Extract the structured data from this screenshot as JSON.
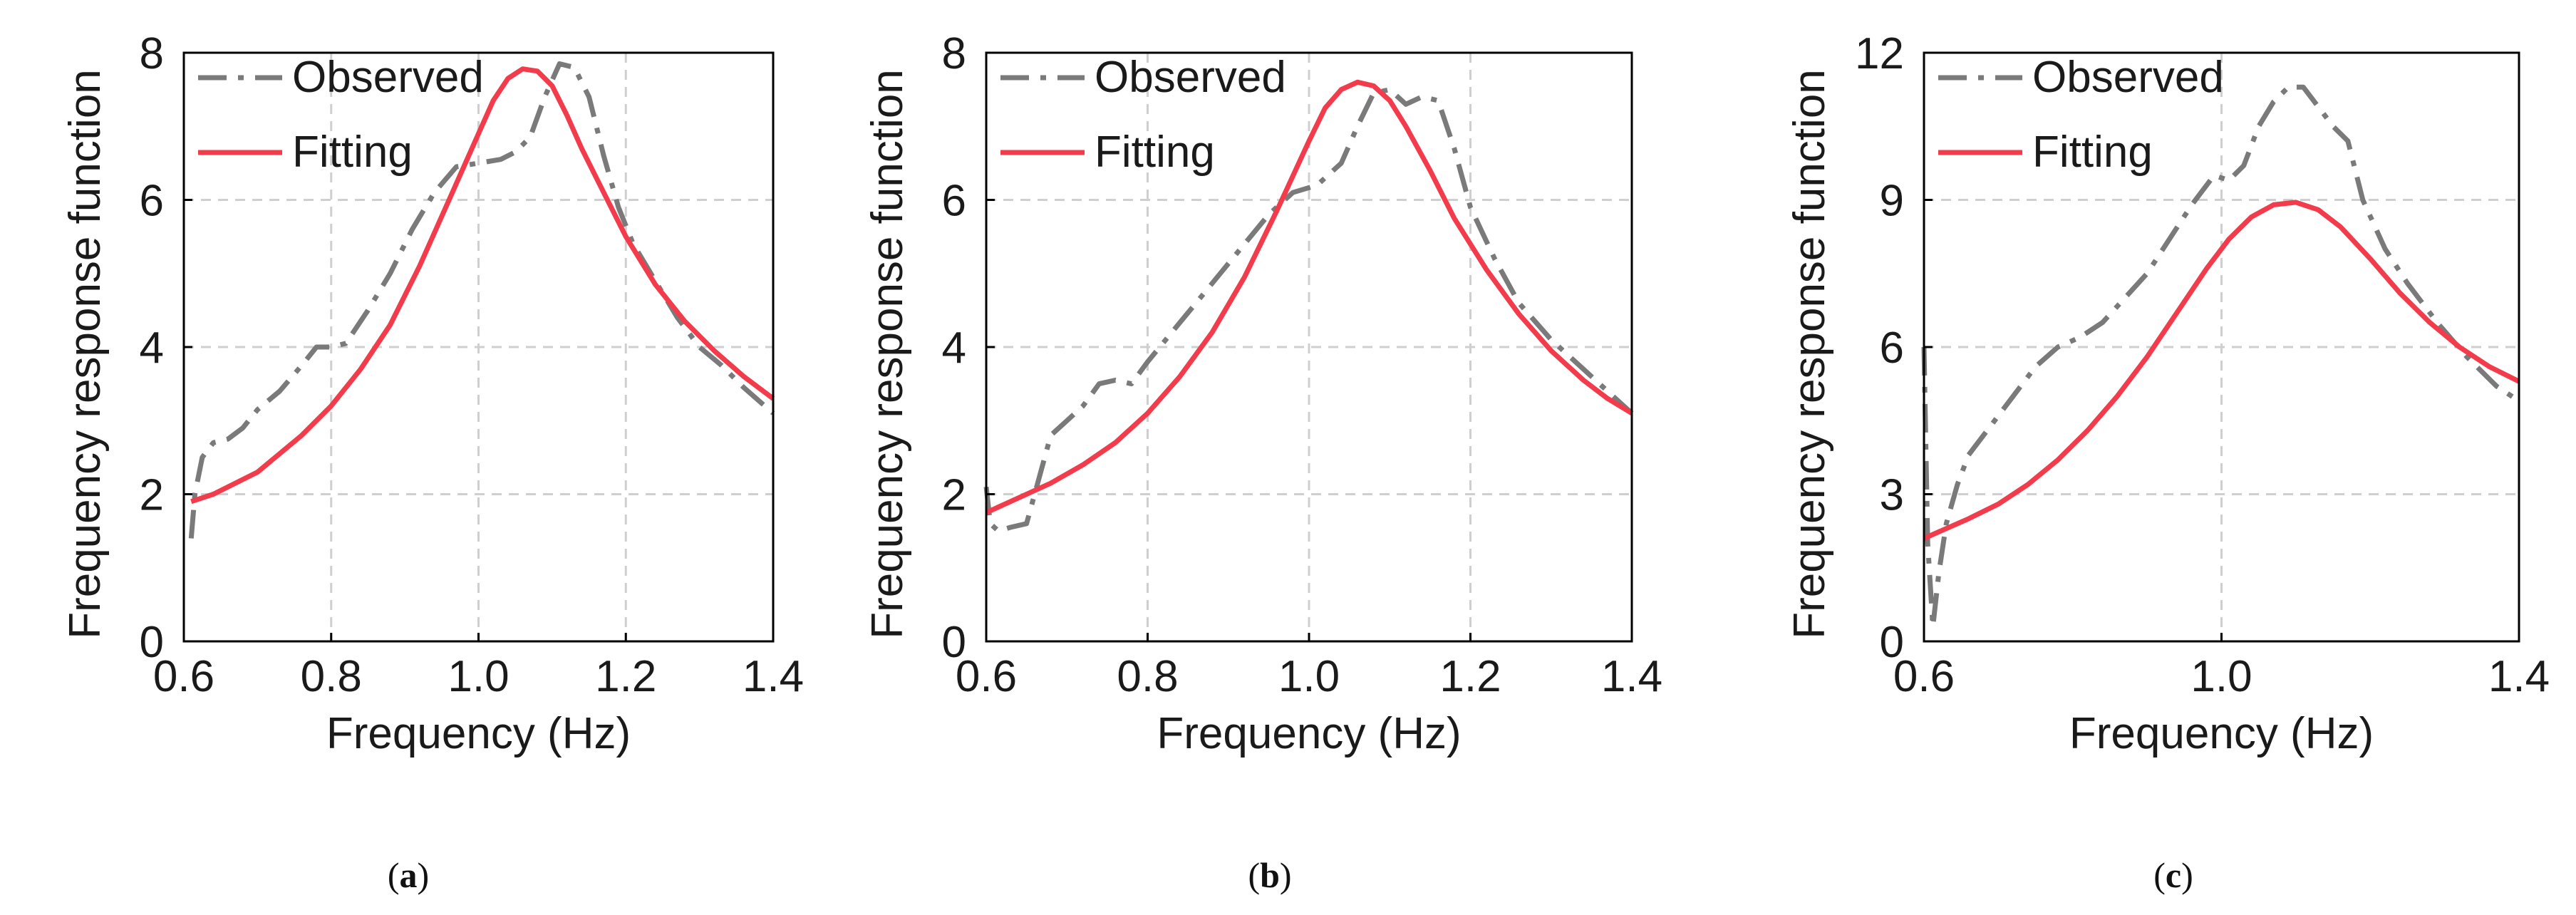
{
  "colors": {
    "observed": "#7a7a7a",
    "fitting": "#f23b4b",
    "grid": "#cfcfcf",
    "frame": "#000000"
  },
  "chart_data": [
    {
      "type": "line",
      "panel_label": "a",
      "xlabel": "Frequency (Hz)",
      "ylabel": "Frequency response function",
      "xlim": [
        0.6,
        1.4
      ],
      "ylim": [
        0,
        8
      ],
      "xticks": [
        0.6,
        0.8,
        1.0,
        1.2,
        1.4
      ],
      "xtick_labels": [
        "0.6",
        "0.8",
        "1.0",
        "1.2",
        "1.4"
      ],
      "yticks": [
        0,
        2,
        4,
        6,
        8
      ],
      "ytick_labels": [
        "0",
        "2",
        "4",
        "6",
        "8"
      ],
      "grid": true,
      "legend_position": "top-left",
      "series": [
        {
          "name": "Observed",
          "style": "dash-dot",
          "x": [
            0.61,
            0.615,
            0.625,
            0.64,
            0.66,
            0.68,
            0.7,
            0.73,
            0.76,
            0.78,
            0.8,
            0.82,
            0.85,
            0.88,
            0.91,
            0.94,
            0.97,
            1.0,
            1.03,
            1.05,
            1.07,
            1.09,
            1.11,
            1.13,
            1.15,
            1.17,
            1.19,
            1.21,
            1.24,
            1.27,
            1.3,
            1.33,
            1.36,
            1.4
          ],
          "y": [
            1.4,
            2.0,
            2.5,
            2.7,
            2.75,
            2.9,
            3.15,
            3.4,
            3.75,
            4.0,
            4.0,
            4.05,
            4.5,
            5.0,
            5.6,
            6.1,
            6.45,
            6.5,
            6.55,
            6.65,
            6.85,
            7.4,
            7.85,
            7.8,
            7.4,
            6.6,
            5.9,
            5.4,
            4.9,
            4.4,
            4.0,
            3.75,
            3.45,
            3.1
          ]
        },
        {
          "name": "Fitting",
          "style": "solid",
          "x": [
            0.61,
            0.64,
            0.67,
            0.7,
            0.73,
            0.76,
            0.8,
            0.84,
            0.88,
            0.92,
            0.96,
            1.0,
            1.02,
            1.04,
            1.06,
            1.08,
            1.1,
            1.12,
            1.14,
            1.17,
            1.2,
            1.24,
            1.28,
            1.32,
            1.36,
            1.4
          ],
          "y": [
            1.9,
            2.0,
            2.15,
            2.3,
            2.55,
            2.8,
            3.2,
            3.7,
            4.3,
            5.1,
            6.0,
            6.9,
            7.35,
            7.65,
            7.78,
            7.75,
            7.55,
            7.15,
            6.7,
            6.1,
            5.5,
            4.85,
            4.35,
            3.95,
            3.6,
            3.3
          ]
        }
      ]
    },
    {
      "type": "line",
      "panel_label": "b",
      "xlabel": "Frequency (Hz)",
      "ylabel": "Frequency response function",
      "xlim": [
        0.6,
        1.4
      ],
      "ylim": [
        0,
        8
      ],
      "xticks": [
        0.6,
        0.8,
        1.0,
        1.2,
        1.4
      ],
      "xtick_labels": [
        "0.6",
        "0.8",
        "1.0",
        "1.2",
        "1.4"
      ],
      "yticks": [
        0,
        2,
        4,
        6,
        8
      ],
      "ytick_labels": [
        "0",
        "2",
        "4",
        "6",
        "8"
      ],
      "grid": true,
      "legend_position": "top-left",
      "series": [
        {
          "name": "Observed",
          "style": "dash-dot",
          "x": [
            0.6,
            0.605,
            0.615,
            0.63,
            0.65,
            0.665,
            0.68,
            0.7,
            0.72,
            0.74,
            0.76,
            0.78,
            0.8,
            0.83,
            0.86,
            0.89,
            0.92,
            0.95,
            0.98,
            1.01,
            1.04,
            1.06,
            1.08,
            1.1,
            1.12,
            1.14,
            1.16,
            1.18,
            1.2,
            1.23,
            1.26,
            1.3,
            1.34,
            1.37,
            1.4
          ],
          "y": [
            2.1,
            1.6,
            1.5,
            1.55,
            1.6,
            2.2,
            2.8,
            3.0,
            3.2,
            3.5,
            3.55,
            3.5,
            3.8,
            4.2,
            4.6,
            5.0,
            5.4,
            5.8,
            6.1,
            6.2,
            6.5,
            7.0,
            7.45,
            7.5,
            7.3,
            7.4,
            7.35,
            6.7,
            5.9,
            5.2,
            4.6,
            4.1,
            3.7,
            3.4,
            3.1
          ]
        },
        {
          "name": "Fitting",
          "style": "solid",
          "x": [
            0.6,
            0.64,
            0.68,
            0.72,
            0.76,
            0.8,
            0.84,
            0.88,
            0.92,
            0.96,
            1.0,
            1.02,
            1.04,
            1.06,
            1.08,
            1.1,
            1.12,
            1.15,
            1.18,
            1.22,
            1.26,
            1.3,
            1.34,
            1.37,
            1.4
          ],
          "y": [
            1.75,
            1.95,
            2.15,
            2.4,
            2.7,
            3.1,
            3.6,
            4.2,
            4.95,
            5.85,
            6.8,
            7.25,
            7.5,
            7.6,
            7.55,
            7.35,
            7.0,
            6.4,
            5.75,
            5.05,
            4.45,
            3.95,
            3.55,
            3.3,
            3.1
          ]
        }
      ]
    },
    {
      "type": "line",
      "panel_label": "c",
      "xlabel": "Frequency (Hz)",
      "ylabel": "Frequency response function",
      "xlim": [
        0.6,
        1.4
      ],
      "ylim": [
        0,
        12
      ],
      "xticks": [
        0.6,
        1.0,
        1.4
      ],
      "xtick_labels": [
        "0.6",
        "1.0",
        "1.4"
      ],
      "yticks": [
        0,
        3,
        6,
        9,
        12
      ],
      "ytick_labels": [
        "0",
        "3",
        "6",
        "9",
        "12"
      ],
      "grid": true,
      "legend_position": "top-left",
      "series": [
        {
          "name": "Observed",
          "style": "dash-dot",
          "x": [
            0.6,
            0.605,
            0.612,
            0.62,
            0.63,
            0.645,
            0.66,
            0.68,
            0.7,
            0.72,
            0.75,
            0.78,
            0.81,
            0.84,
            0.87,
            0.9,
            0.93,
            0.96,
            0.99,
            1.01,
            1.03,
            1.05,
            1.07,
            1.09,
            1.11,
            1.13,
            1.15,
            1.17,
            1.19,
            1.22,
            1.25,
            1.29,
            1.33,
            1.37,
            1.4
          ],
          "y": [
            6.0,
            2.0,
            0.3,
            1.4,
            2.4,
            3.2,
            3.8,
            4.2,
            4.6,
            5.0,
            5.6,
            6.0,
            6.2,
            6.5,
            7.0,
            7.5,
            8.2,
            8.9,
            9.5,
            9.4,
            9.7,
            10.5,
            11.0,
            11.3,
            11.3,
            10.9,
            10.5,
            10.2,
            9.0,
            8.0,
            7.3,
            6.5,
            5.8,
            5.2,
            4.9
          ]
        },
        {
          "name": "Fitting",
          "style": "solid",
          "x": [
            0.6,
            0.63,
            0.66,
            0.7,
            0.74,
            0.78,
            0.82,
            0.86,
            0.9,
            0.94,
            0.98,
            1.01,
            1.04,
            1.07,
            1.1,
            1.13,
            1.16,
            1.2,
            1.24,
            1.28,
            1.32,
            1.36,
            1.4
          ],
          "y": [
            2.1,
            2.3,
            2.5,
            2.8,
            3.2,
            3.7,
            4.3,
            5.0,
            5.8,
            6.7,
            7.6,
            8.2,
            8.65,
            8.9,
            8.95,
            8.8,
            8.45,
            7.8,
            7.1,
            6.5,
            6.0,
            5.6,
            5.3
          ]
        }
      ]
    }
  ]
}
